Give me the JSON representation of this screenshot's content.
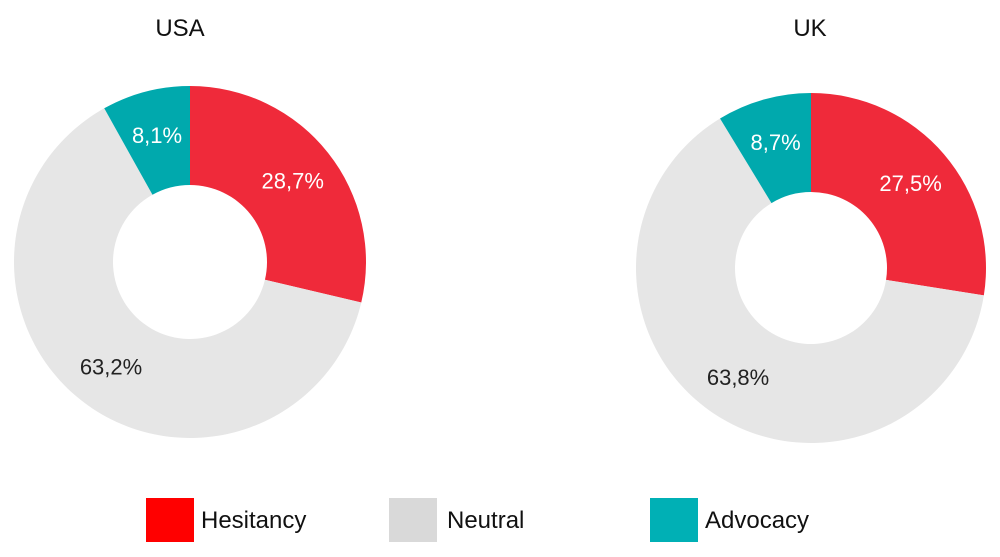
{
  "chart_data": [
    {
      "type": "pie",
      "variant": "donut",
      "title": "USA",
      "slices": [
        {
          "name": "Hesitancy",
          "value": 28.7,
          "label": "28,7%"
        },
        {
          "name": "Neutral",
          "value": 63.2,
          "label": "63,2%"
        },
        {
          "name": "Advocacy",
          "value": 8.1,
          "label": "8,1%"
        }
      ]
    },
    {
      "type": "pie",
      "variant": "donut",
      "title": "UK",
      "slices": [
        {
          "name": "Hesitancy",
          "value": 27.5,
          "label": "27,5%"
        },
        {
          "name": "Neutral",
          "value": 63.8,
          "label": "63,8%"
        },
        {
          "name": "Advocacy",
          "value": 8.7,
          "label": "8,7%"
        }
      ]
    }
  ],
  "legend": {
    "placement": "bottom",
    "items": [
      {
        "name": "Hesitancy",
        "color": "#ff0000"
      },
      {
        "name": "Neutral",
        "color": "#d9d9d9"
      },
      {
        "name": "Advocacy",
        "color": "#00b0b5"
      }
    ]
  },
  "colors": {
    "Hesitancy": "#ef2a3a",
    "Neutral": "#e6e6e6",
    "Advocacy": "#00a9ad",
    "label_on_dark": "#ffffff",
    "label_on_light": "#222222"
  }
}
